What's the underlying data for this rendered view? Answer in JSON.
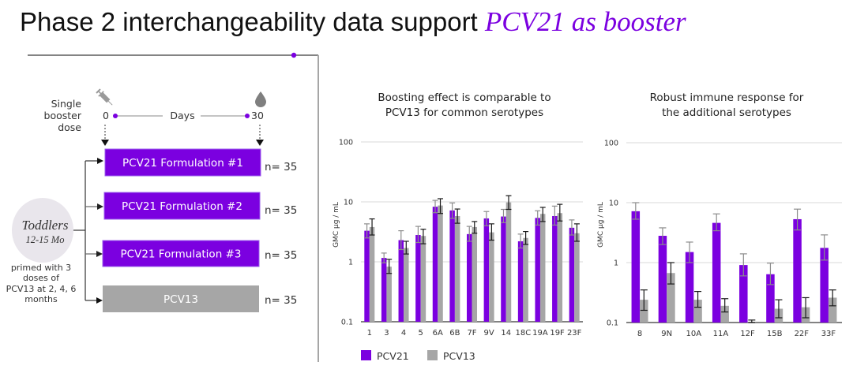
{
  "title": {
    "main": "Phase 2 interchangeability data support ",
    "highlight": "PCV21 as booster"
  },
  "colors": {
    "accent": "#7b00e0",
    "pcv21": "#7b00e0",
    "pcv13": "#a6a6a6",
    "population_circle": "#e9e6ec"
  },
  "diagram": {
    "booster_label": [
      "Single",
      "booster",
      "dose"
    ],
    "timeline": {
      "start_icon": "syringe-icon",
      "start": "0",
      "unit": "Days",
      "end": "30",
      "end_icon": "blood-drop-icon"
    },
    "population": {
      "name": "Toddlers",
      "age": "12-15 Mo",
      "note": [
        "primed with 3",
        "doses of",
        "PCV13 at 2, 4, 6",
        "months"
      ]
    },
    "arms": [
      {
        "label": "PCV21 Formulation #1",
        "n": "n= 35"
      },
      {
        "label": "PCV21 Formulation #2",
        "n": "n= 35"
      },
      {
        "label": "PCV21 Formulation #3",
        "n": "n= 35"
      },
      {
        "label": "PCV13",
        "n": "n= 35"
      }
    ]
  },
  "legend": [
    {
      "label": "PCV21",
      "color": "#7b00e0"
    },
    {
      "label": "PCV13",
      "color": "#a6a6a6"
    }
  ],
  "chart_data": [
    {
      "type": "bar",
      "title": "Boosting effect is comparable to PCV13 for common serotypes",
      "title_lines": [
        "Boosting effect is comparable to",
        "PCV13 for common serotypes"
      ],
      "xlabel": "",
      "ylabel": "GMC µg / mL",
      "yscale": "log",
      "ylim": [
        0.1,
        100
      ],
      "yticks": [
        0.1,
        1,
        10,
        100
      ],
      "ytick_labels": [
        "0.1",
        "1",
        "10",
        "100"
      ],
      "grid": true,
      "legend_position": "bottom-left",
      "categories": [
        "1",
        "3",
        "4",
        "5",
        "6A",
        "6B",
        "7F",
        "9V",
        "14",
        "18C",
        "19A",
        "19F",
        "23F"
      ],
      "series": [
        {
          "name": "PCV21",
          "color": "#7b00e0",
          "error_color": "#8c8c8c",
          "values": [
            3.3,
            1.16,
            2.3,
            2.8,
            8.3,
            7.2,
            2.9,
            5.3,
            5.7,
            2.2,
            5.4,
            5.8,
            3.7
          ],
          "error_low": [
            2.5,
            0.96,
            1.6,
            2.1,
            6.6,
            5.3,
            2.2,
            4.0,
            4.5,
            1.7,
            4.1,
            4.1,
            2.8
          ],
          "error_high": [
            4.3,
            1.4,
            3.3,
            3.9,
            10.6,
            9.6,
            3.9,
            6.9,
            7.5,
            2.9,
            7.1,
            8.5,
            5.0
          ]
        },
        {
          "name": "PCV13",
          "color": "#a6a6a6",
          "error_color": "#1a1a1a",
          "values": [
            3.8,
            0.83,
            1.7,
            2.7,
            8.7,
            5.8,
            3.8,
            3.1,
            9.8,
            2.5,
            6.3,
            6.5,
            3.0
          ],
          "error_low": [
            2.8,
            0.64,
            1.35,
            2.0,
            6.4,
            4.4,
            3.0,
            2.3,
            7.5,
            1.95,
            4.7,
            4.8,
            2.2
          ],
          "error_high": [
            5.2,
            1.1,
            2.2,
            3.5,
            11.3,
            7.6,
            4.7,
            4.3,
            12.7,
            3.2,
            8.1,
            9.1,
            4.3
          ]
        }
      ]
    },
    {
      "type": "bar",
      "title": "Robust immune response for the additional serotypes",
      "title_lines": [
        "Robust immune response for",
        "the additional serotypes"
      ],
      "xlabel": "",
      "ylabel": "GMC µg / mL",
      "yscale": "log",
      "ylim": [
        0.1,
        100
      ],
      "yticks": [
        0.1,
        1,
        10,
        100
      ],
      "ytick_labels": [
        "0.1",
        "1",
        "10",
        "100"
      ],
      "grid": true,
      "categories": [
        "8",
        "9N",
        "10A",
        "11A",
        "12F",
        "15B",
        "22F",
        "33F"
      ],
      "series": [
        {
          "name": "PCV21",
          "color": "#7b00e0",
          "error_color": "#8c8c8c",
          "values": [
            7.2,
            2.8,
            1.5,
            4.6,
            0.91,
            0.64,
            5.3,
            1.76
          ],
          "error_low": [
            5.3,
            2.0,
            1.0,
            3.4,
            0.6,
            0.43,
            3.5,
            1.1
          ],
          "error_high": [
            10.0,
            3.8,
            2.2,
            6.5,
            1.4,
            0.98,
            7.8,
            2.9
          ]
        },
        {
          "name": "PCV13",
          "color": "#a6a6a6",
          "error_color": "#1a1a1a",
          "values": [
            0.24,
            0.67,
            0.24,
            0.19,
            0.102,
            0.17,
            0.18,
            0.26
          ],
          "error_low": [
            0.16,
            0.44,
            0.18,
            0.15,
            0.1,
            0.12,
            0.12,
            0.19
          ],
          "error_high": [
            0.35,
            1.0,
            0.33,
            0.25,
            0.11,
            0.24,
            0.26,
            0.35
          ]
        }
      ]
    }
  ]
}
